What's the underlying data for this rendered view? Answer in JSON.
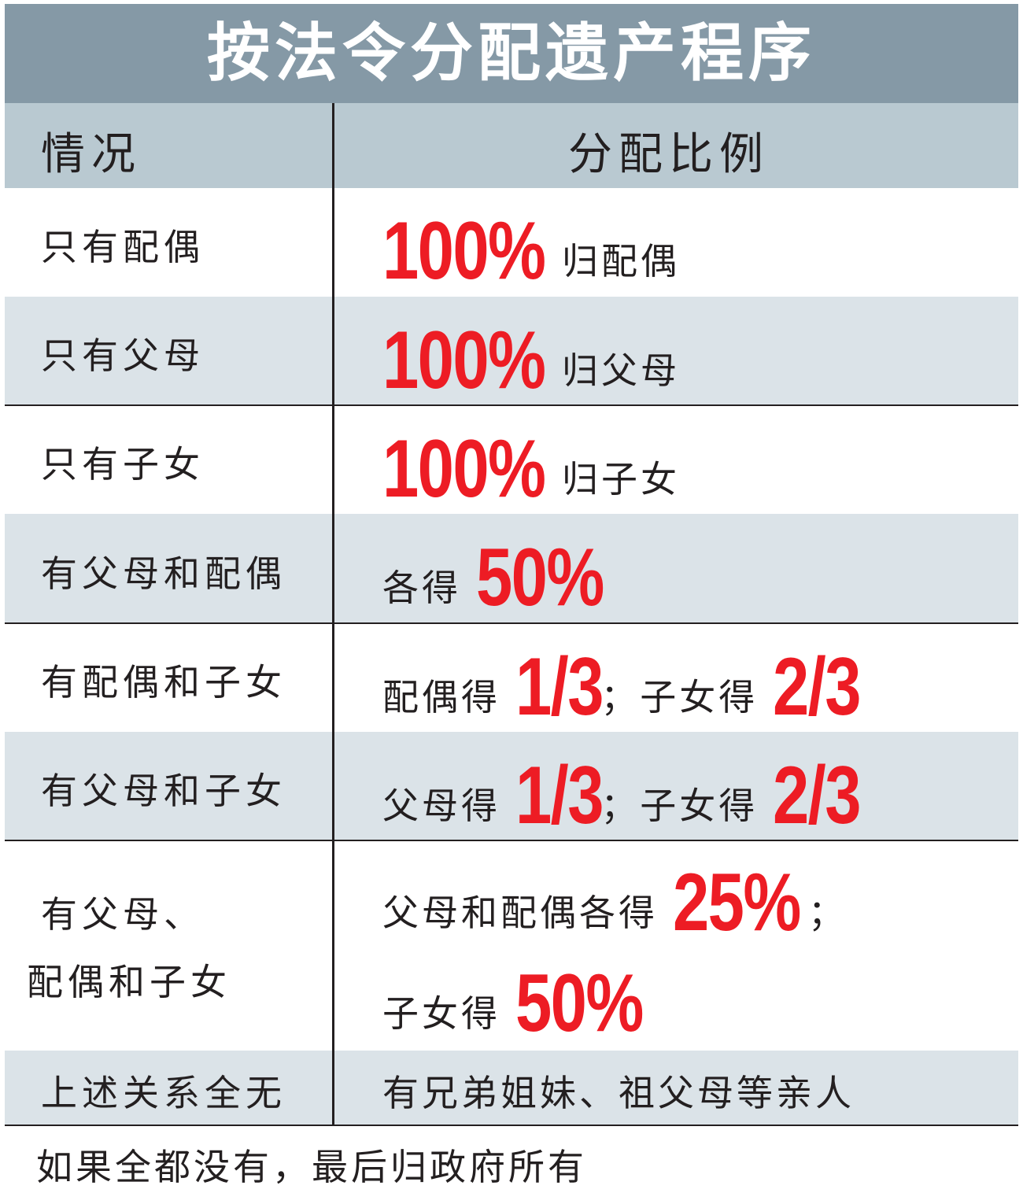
{
  "title": "按法令分配遗产程序",
  "header": {
    "situation": "情况",
    "ratio": "分配比例"
  },
  "colors": {
    "title_bg": "#8599a6",
    "header_bg": "#b9c9d1",
    "row_alt_bg": "#dbe3e8",
    "highlight": "#ed1c24"
  },
  "rows": [
    {
      "situation": [
        "只有配偶"
      ],
      "ratio": [
        [
          {
            "t": "100%",
            "big": true
          },
          {
            "t": "归配偶"
          }
        ]
      ]
    },
    {
      "situation": [
        "只有父母"
      ],
      "ratio": [
        [
          {
            "t": "100%",
            "big": true
          },
          {
            "t": "归父母"
          }
        ]
      ]
    },
    {
      "situation": [
        "只有子女"
      ],
      "ratio": [
        [
          {
            "t": "100%",
            "big": true
          },
          {
            "t": "归子女"
          }
        ]
      ]
    },
    {
      "situation": [
        "有父母和配偶"
      ],
      "ratio": [
        [
          {
            "t": "各得 "
          },
          {
            "t": "50%",
            "big": true
          }
        ]
      ]
    },
    {
      "situation": [
        "有配偶和子女"
      ],
      "ratio": [
        [
          {
            "t": "配偶得 "
          },
          {
            "t": "1/3",
            "big": true
          },
          {
            "t": "；子女得 "
          },
          {
            "t": "2/3",
            "big": true
          }
        ]
      ]
    },
    {
      "situation": [
        "有父母和子女"
      ],
      "ratio": [
        [
          {
            "t": "父母得 "
          },
          {
            "t": "1/3",
            "big": true
          },
          {
            "t": "；子女得 "
          },
          {
            "t": "2/3",
            "big": true
          }
        ]
      ]
    },
    {
      "situation": [
        "有父母、",
        "配偶和子女"
      ],
      "ratio": [
        [
          {
            "t": "父母和配偶各得 "
          },
          {
            "t": "25%",
            "big": true
          },
          {
            "t": "；"
          }
        ],
        [
          {
            "t": "子女得 "
          },
          {
            "t": "50%",
            "big": true
          }
        ]
      ]
    },
    {
      "situation": [
        "上述关系全无"
      ],
      "ratio": [
        [
          {
            "t": "有兄弟姐妹、祖父母等亲人"
          }
        ]
      ]
    }
  ],
  "footer": "如果全都没有，最后归政府所有"
}
